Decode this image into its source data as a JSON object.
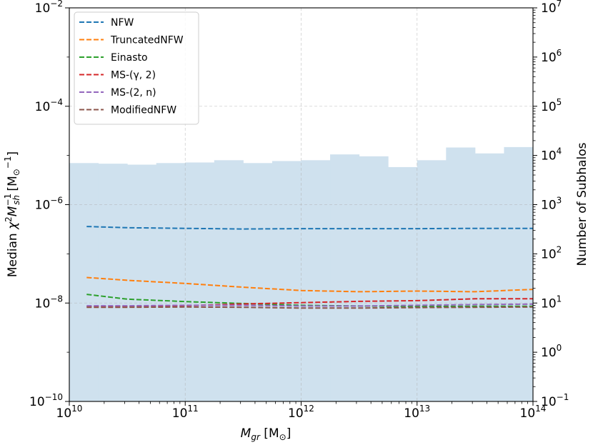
{
  "chart_data": {
    "type": "line",
    "xlabel": "M_gr [M_⊙]",
    "ylabel_left": "Median χ²M_sh^-1 [M_⊙^-1]",
    "ylabel_right": "Number of Subhalos",
    "x_scale": "log",
    "y_scale_left": "log",
    "y_scale_right": "log",
    "xlim": [
      10000000000.0,
      100000000000000.0
    ],
    "ylim_left": [
      1e-10,
      0.01
    ],
    "ylim_right": [
      0.1,
      10000000.0
    ],
    "grid": true,
    "legend_position": "upper-left",
    "x_ticks": [
      {
        "base": "10",
        "exp": "10"
      },
      {
        "base": "10",
        "exp": "11"
      },
      {
        "base": "10",
        "exp": "12"
      },
      {
        "base": "10",
        "exp": "13"
      },
      {
        "base": "10",
        "exp": "14"
      }
    ],
    "y_ticks_left": [
      {
        "base": "10",
        "exp": "−2"
      },
      {
        "base": "10",
        "exp": "−4"
      },
      {
        "base": "10",
        "exp": "−6"
      },
      {
        "base": "10",
        "exp": "−8"
      },
      {
        "base": "10",
        "exp": "−10"
      }
    ],
    "y_ticks_right": [
      {
        "base": "10",
        "exp": "7"
      },
      {
        "base": "10",
        "exp": "6"
      },
      {
        "base": "10",
        "exp": "5"
      },
      {
        "base": "10",
        "exp": "4"
      },
      {
        "base": "10",
        "exp": "3"
      },
      {
        "base": "10",
        "exp": "2"
      },
      {
        "base": "10",
        "exp": "1"
      },
      {
        "base": "10",
        "exp": "0"
      },
      {
        "base": "10",
        "exp": "−1"
      }
    ],
    "histogram": {
      "color": "#cfe1ee",
      "bin_edges_log10": [
        10.0,
        10.25,
        10.5,
        10.75,
        11.0,
        11.25,
        11.5,
        11.75,
        12.0,
        12.25,
        12.5,
        12.75,
        13.0,
        13.25,
        13.5,
        13.75,
        14.0
      ],
      "counts": [
        7000,
        6800,
        6500,
        7000,
        7200,
        8000,
        7000,
        7700,
        8000,
        10500,
        9600,
        5800,
        8000,
        14500,
        11000,
        14800
      ]
    },
    "x_log10": [
      10.15,
      10.5,
      11.0,
      11.5,
      12.0,
      12.5,
      13.0,
      13.5,
      14.0
    ],
    "series": [
      {
        "name": "NFW",
        "color": "#1f77b4",
        "values": [
          3.6e-07,
          3.4e-07,
          3.3e-07,
          3.2e-07,
          3.25e-07,
          3.25e-07,
          3.25e-07,
          3.3e-07,
          3.3e-07
        ]
      },
      {
        "name": "TruncatedNFW",
        "color": "#ff7f0e",
        "values": [
          3.3e-08,
          2.9e-08,
          2.5e-08,
          2.1e-08,
          1.8e-08,
          1.7e-08,
          1.75e-08,
          1.7e-08,
          1.9e-08
        ]
      },
      {
        "name": "Einasto",
        "color": "#2ca02c",
        "values": [
          1.5e-08,
          1.2e-08,
          1.07e-08,
          9.8e-09,
          9e-09,
          8.7e-09,
          8.5e-09,
          8.6e-09,
          8.6e-09
        ]
      },
      {
        "name": "MS-(γ, 2)",
        "color": "#d62728",
        "values": [
          8.5e-09,
          8.5e-09,
          8.8e-09,
          9.6e-09,
          1.02e-08,
          1.08e-08,
          1.12e-08,
          1.22e-08,
          1.22e-08
        ]
      },
      {
        "name": "MS-(2, n)",
        "color": "#9467bd",
        "values": [
          8.8e-09,
          8.8e-09,
          9e-09,
          9e-09,
          8.7e-09,
          8.7e-09,
          9e-09,
          9.3e-09,
          9.5e-09
        ]
      },
      {
        "name": "ModifiedNFW",
        "color": "#8c564b",
        "values": [
          8.2e-09,
          8.2e-09,
          8.3e-09,
          8.2e-09,
          7.9e-09,
          7.9e-09,
          8.1e-09,
          8.2e-09,
          8.3e-09
        ]
      }
    ]
  }
}
